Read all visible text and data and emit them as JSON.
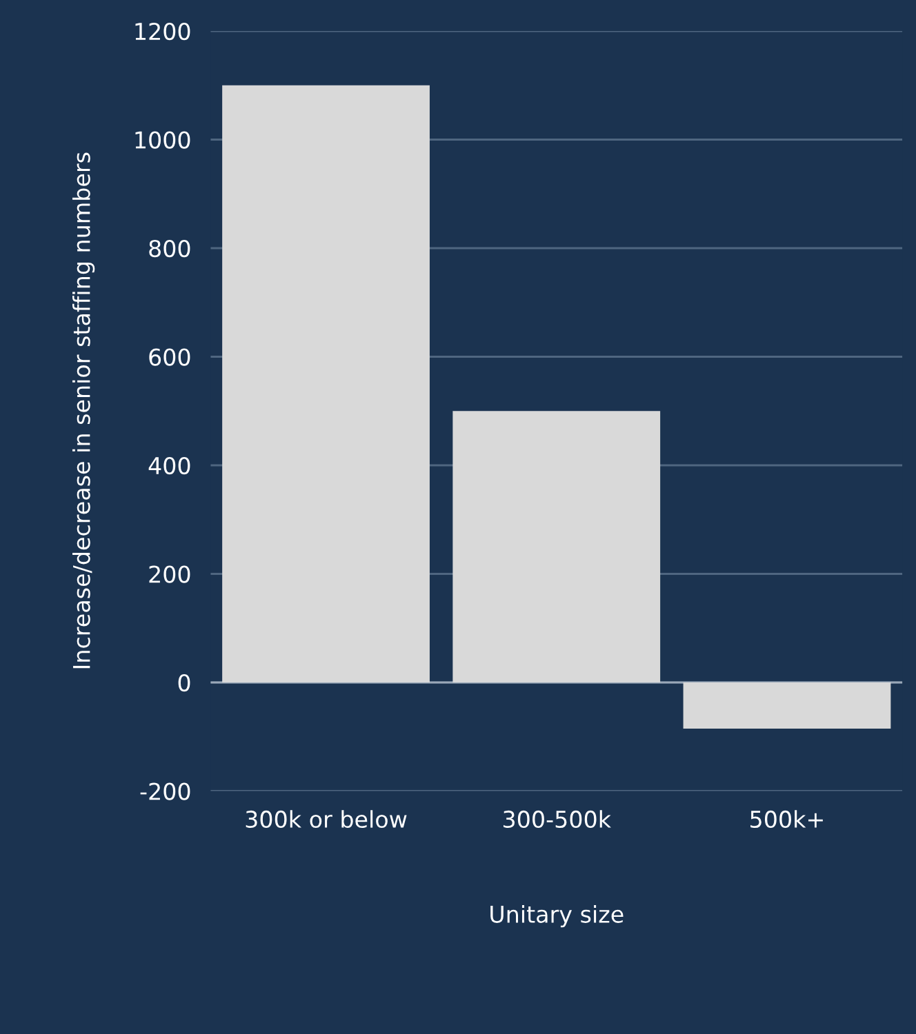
{
  "chart_data": {
    "type": "bar",
    "xlabel": "Unitary size",
    "ylabel": "Increase/decrease in senior staffing numbers",
    "categories": [
      "300k or below",
      "300-500k",
      "500k+"
    ],
    "values": [
      1100,
      500,
      -85
    ],
    "color": "#d9d9d9",
    "ylim": [
      -200,
      1200
    ],
    "yticks": [
      {
        "value": -200,
        "label": "-200"
      },
      0,
      200,
      400,
      600,
      800,
      1000,
      1200
    ],
    "grid": "y"
  }
}
